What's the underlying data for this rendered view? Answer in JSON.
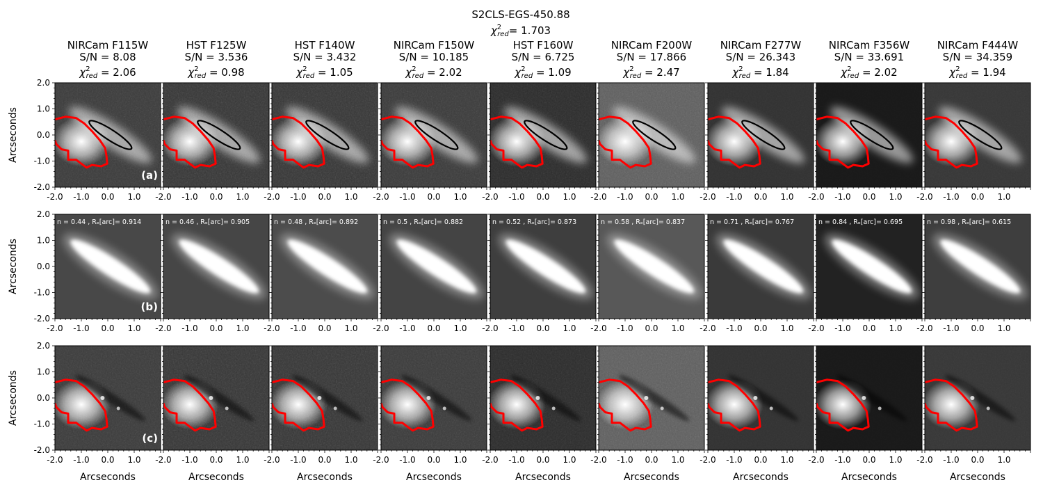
{
  "figure": {
    "title": "S2CLS-EGS-450.88",
    "chi_prefix": "χ",
    "chi_sup": "2",
    "chi_sub": "red",
    "chi_value": "= 1.703"
  },
  "bands": [
    {
      "name": "NIRCam F115W",
      "sn": "S/N = 8.08",
      "chi2": "= 2.06",
      "bg": 60,
      "noise": 0.55,
      "sersic": "n = 0.44 , Rₑ[arc]= 0.914",
      "mbg": 72
    },
    {
      "name": "HST F125W",
      "sn": "S/N = 3.536",
      "chi2": "= 0.98",
      "bg": 55,
      "noise": 0.75,
      "sersic": "n = 0.46 , Rₑ[arc]= 0.905",
      "mbg": 70
    },
    {
      "name": "HST F140W",
      "sn": "S/N = 3.432",
      "chi2": "= 1.05",
      "bg": 55,
      "noise": 0.75,
      "sersic": "n = 0.48 , Rₑ[arc]= 0.892",
      "mbg": 76
    },
    {
      "name": "NIRCam F150W",
      "sn": "S/N = 10.185",
      "chi2": "= 2.02",
      "bg": 60,
      "noise": 0.55,
      "sersic": "n = 0.5 , Rₑ[arc]= 0.882",
      "mbg": 68
    },
    {
      "name": "HST F160W",
      "sn": "S/N = 6.725",
      "chi2": "= 1.09",
      "bg": 45,
      "noise": 0.7,
      "sersic": "n = 0.52 , Rₑ[arc]= 0.873",
      "mbg": 62
    },
    {
      "name": "NIRCam F200W",
      "sn": "S/N = 17.866",
      "chi2": "= 2.47",
      "bg": 95,
      "noise": 0.35,
      "sersic": "n = 0.58 , Rₑ[arc]= 0.837",
      "mbg": 88
    },
    {
      "name": "NIRCam F277W",
      "sn": "S/N = 26.343",
      "chi2": "= 1.84",
      "bg": 50,
      "noise": 0.25,
      "sersic": "n = 0.71 , Rₑ[arc]= 0.767",
      "mbg": 58
    },
    {
      "name": "NIRCam F356W",
      "sn": "S/N = 33.691",
      "chi2": "= 2.02",
      "bg": 25,
      "noise": 0.2,
      "sersic": "n = 0.84 , Rₑ[arc]= 0.695",
      "mbg": 34
    },
    {
      "name": "NIRCam F444W",
      "sn": "S/N = 34.359",
      "chi2": "= 1.94",
      "bg": 55,
      "noise": 0.25,
      "sersic": "n = 0.98 , Rₑ[arc]= 0.615",
      "mbg": 62
    }
  ],
  "rows": [
    {
      "tag": "(a)",
      "kind": "data"
    },
    {
      "tag": "(b)",
      "kind": "model"
    },
    {
      "tag": "(c)",
      "kind": "residual"
    }
  ],
  "axes": {
    "ylabel": "Arcseconds",
    "xlabel": "Arcseconds",
    "xticks": [
      "-2.0",
      "-1.0",
      "0.0",
      "1.0"
    ],
    "yticks": [
      "2.0",
      "1.0",
      "0.0",
      "-1.0",
      "-2.0"
    ],
    "xlim": [
      -2.0,
      2.0
    ],
    "ylim": [
      -2.0,
      2.0
    ]
  },
  "colors": {
    "contour": "#ff0000",
    "ellipse": "#000000",
    "label_text": "#ffffff"
  },
  "chart_data": {
    "type": "heatmap",
    "title": "S2CLS-EGS-450.88",
    "global_chi2_red": 1.703,
    "xlabel": "Arcseconds",
    "ylabel": "Arcseconds",
    "xlim": [
      -2.0,
      2.0
    ],
    "ylim": [
      -2.0,
      2.0
    ],
    "panels_per_row": [
      "(a)",
      "(b)",
      "(c)"
    ],
    "series": [
      {
        "name": "NIRCam F115W",
        "sn": 8.08,
        "chi2_red": 2.06,
        "n": 0.44,
        "Re_arc": 0.914
      },
      {
        "name": "HST F125W",
        "sn": 3.536,
        "chi2_red": 0.98,
        "n": 0.46,
        "Re_arc": 0.905
      },
      {
        "name": "HST F140W",
        "sn": 3.432,
        "chi2_red": 1.05,
        "n": 0.48,
        "Re_arc": 0.892
      },
      {
        "name": "NIRCam F150W",
        "sn": 10.185,
        "chi2_red": 2.02,
        "n": 0.5,
        "Re_arc": 0.882
      },
      {
        "name": "HST F160W",
        "sn": 6.725,
        "chi2_red": 1.09,
        "n": 0.52,
        "Re_arc": 0.873
      },
      {
        "name": "NIRCam F200W",
        "sn": 17.866,
        "chi2_red": 2.47,
        "n": 0.58,
        "Re_arc": 0.837
      },
      {
        "name": "NIRCam F277W",
        "sn": 26.343,
        "chi2_red": 1.84,
        "n": 0.71,
        "Re_arc": 0.767
      },
      {
        "name": "NIRCam F356W",
        "sn": 33.691,
        "chi2_red": 2.02,
        "n": 0.84,
        "Re_arc": 0.695
      },
      {
        "name": "NIRCam F444W",
        "sn": 34.359,
        "chi2_red": 1.94,
        "n": 0.98,
        "Re_arc": 0.615
      }
    ]
  }
}
